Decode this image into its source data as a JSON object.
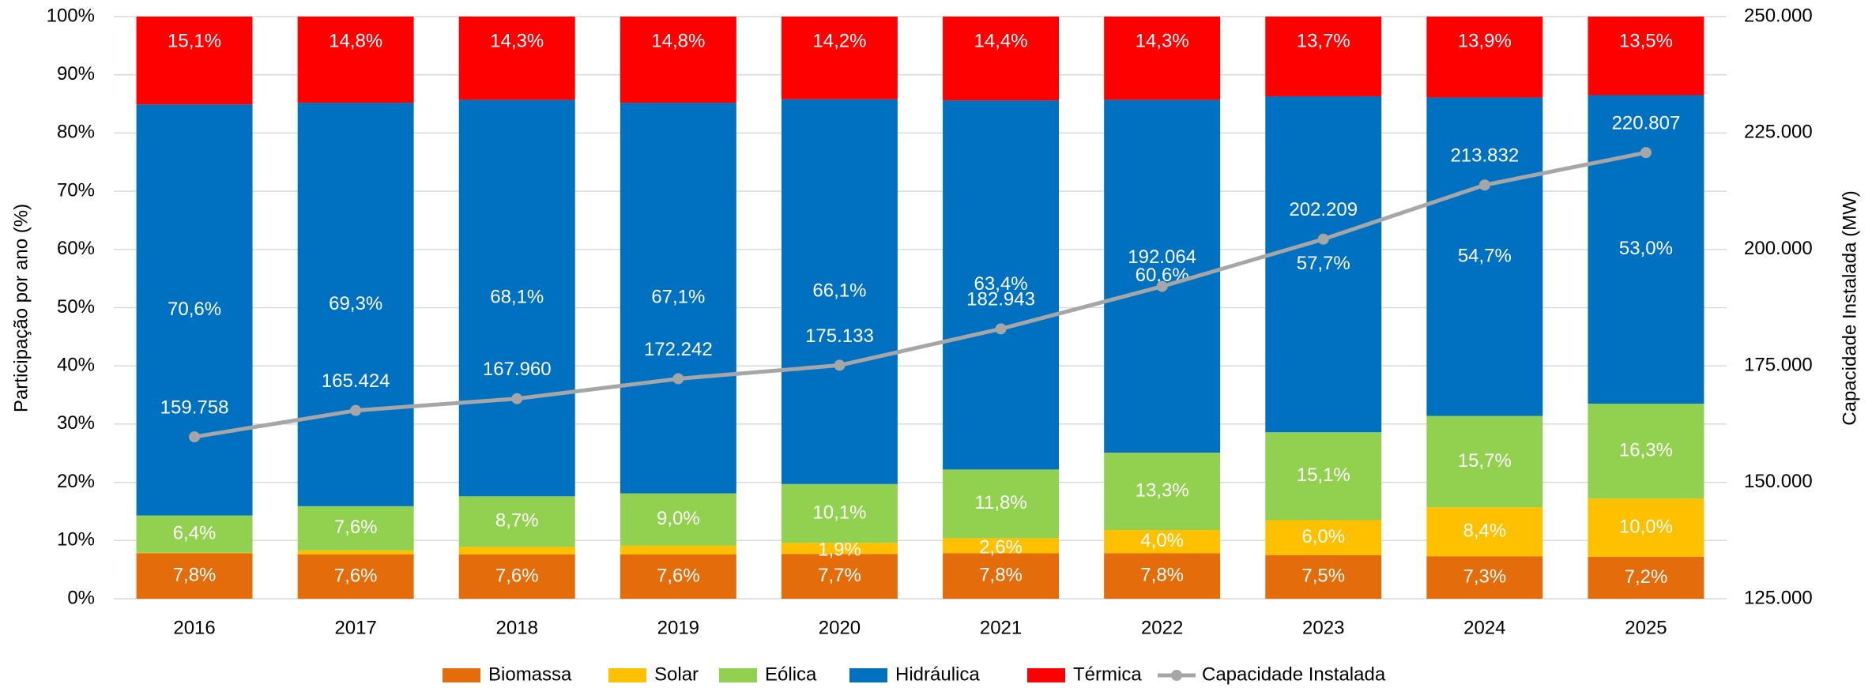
{
  "chart_data": {
    "type": "bar",
    "stacked": true,
    "y_label": "Participação por ano (%)",
    "y2_label": "Capacidade Instalada (MW)",
    "categories": [
      "2016",
      "2017",
      "2018",
      "2019",
      "2020",
      "2021",
      "2022",
      "2023",
      "2024",
      "2025"
    ],
    "ylim": [
      0,
      100
    ],
    "yticks": [
      {
        "value": 0,
        "label": "0%"
      },
      {
        "value": 10,
        "label": "10%"
      },
      {
        "value": 20,
        "label": "20%"
      },
      {
        "value": 30,
        "label": "30%"
      },
      {
        "value": 40,
        "label": "40%"
      },
      {
        "value": 50,
        "label": "50%"
      },
      {
        "value": 60,
        "label": "60%"
      },
      {
        "value": 70,
        "label": "70%"
      },
      {
        "value": 80,
        "label": "80%"
      },
      {
        "value": 90,
        "label": "90%"
      },
      {
        "value": 100,
        "label": "100%"
      }
    ],
    "y2lim": [
      125000,
      250000
    ],
    "y2ticks": [
      {
        "value": 125000,
        "label": "125.000"
      },
      {
        "value": 150000,
        "label": "150.000"
      },
      {
        "value": 175000,
        "label": "175.000"
      },
      {
        "value": 200000,
        "label": "200.000"
      },
      {
        "value": 225000,
        "label": "225.000"
      },
      {
        "value": 250000,
        "label": "250.000"
      }
    ],
    "grid": true,
    "legend": "bottom",
    "series": [
      {
        "name": "Biomassa",
        "color": "#E46C0A",
        "values": [
          7.8,
          7.6,
          7.6,
          7.6,
          7.7,
          7.8,
          7.8,
          7.5,
          7.3,
          7.2
        ],
        "value_labels": [
          "7,8%",
          "7,6%",
          "7,6%",
          "7,6%",
          "7,7%",
          "7,8%",
          "7,8%",
          "7,5%",
          "7,3%",
          "7,2%"
        ]
      },
      {
        "name": "Solar",
        "color": "#FFC000",
        "values": [
          0.1,
          0.7,
          1.3,
          1.5,
          1.9,
          2.6,
          4.0,
          6.0,
          8.4,
          10.0
        ],
        "value_labels": [
          null,
          null,
          null,
          null,
          "1,9%",
          "2,6%",
          "4,0%",
          "6,0%",
          "8,4%",
          "10,0%"
        ]
      },
      {
        "name": "Eólica",
        "color": "#92D050",
        "values": [
          6.4,
          7.6,
          8.7,
          9.0,
          10.1,
          11.8,
          13.3,
          15.1,
          15.7,
          16.3
        ],
        "value_labels": [
          "6,4%",
          "7,6%",
          "8,7%",
          "9,0%",
          "10,1%",
          "11,8%",
          "13,3%",
          "15,1%",
          "15,7%",
          "16,3%"
        ]
      },
      {
        "name": "Hidráulica",
        "color": "#0070C0",
        "values": [
          70.6,
          69.3,
          68.1,
          67.1,
          66.1,
          63.4,
          60.6,
          57.7,
          54.7,
          53.0
        ],
        "value_labels": [
          "70,6%",
          "69,3%",
          "68,1%",
          "67,1%",
          "66,1%",
          "63,4%",
          "60,6%",
          "57,7%",
          "54,7%",
          "53,0%"
        ]
      },
      {
        "name": "Térmica",
        "color": "#FF0000",
        "values": [
          15.1,
          14.8,
          14.3,
          14.8,
          14.2,
          14.4,
          14.3,
          13.7,
          13.9,
          13.5
        ],
        "value_labels": [
          "15,1%",
          "14,8%",
          "14,3%",
          "14,8%",
          "14,2%",
          "14,4%",
          "14,3%",
          "13,7%",
          "13,9%",
          "13,5%"
        ]
      },
      {
        "name": "Capacidade Instalada",
        "color": "#A6A6A6",
        "type": "line",
        "axis": "y2",
        "values": [
          159758,
          165424,
          167960,
          172242,
          175133,
          182943,
          192064,
          202209,
          213832,
          220807
        ],
        "value_labels": [
          "159.758",
          "165.424",
          "167.960",
          "172.242",
          "175.133",
          "182.943",
          "192.064",
          "202.209",
          "213.832",
          "220.807"
        ]
      }
    ]
  }
}
